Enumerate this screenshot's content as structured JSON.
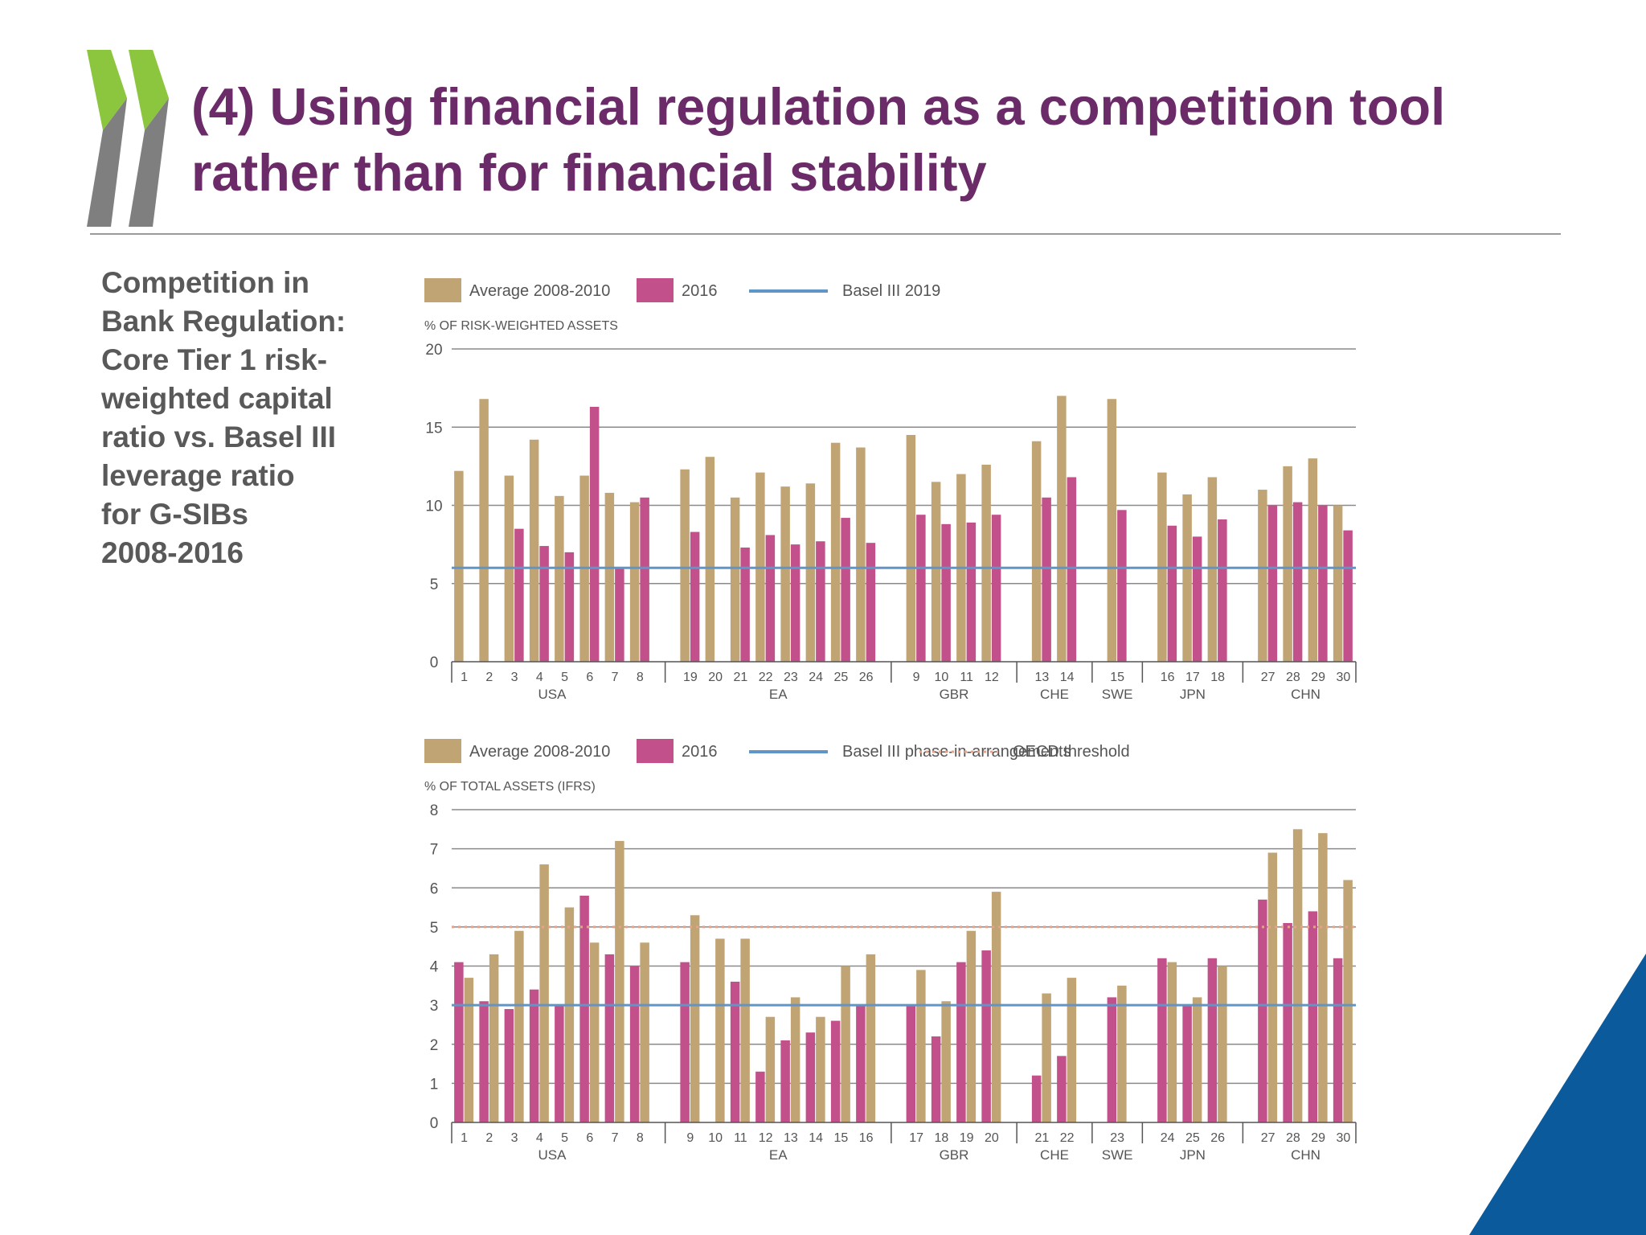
{
  "slide": {
    "title_lines": [
      "(4) Using financial regulation as a competition tool",
      "rather than for financial stability"
    ],
    "side_text_lines": [
      "Competition in",
      "Bank Regulation:",
      "Core Tier 1 risk-",
      "weighted capital",
      "ratio vs. Basel III",
      "leverage ratio",
      "for G-SIBs",
      "2008-2016"
    ],
    "colors": {
      "title": "#6b2a68",
      "side_text": "#595959",
      "logo_green": "#8cc63f",
      "logo_gray": "#7f7f7f",
      "corner_blue": "#0a5a9c"
    },
    "icons": [
      "chevrons-logo-icon"
    ]
  },
  "chart_data": [
    {
      "type": "bar",
      "legend": [
        "Average 2008-2010",
        "2016",
        "Basel III 2019"
      ],
      "ylabel": "% OF RISK-WEIGHTED ASSETS",
      "ylim": [
        0,
        20
      ],
      "yticks": [
        0,
        5,
        10,
        15,
        20
      ],
      "grid": true,
      "legend_position": "top-left",
      "colors": {
        "avg": "#c1a474",
        "y2016": "#c2508a",
        "line": "#5f96c7"
      },
      "reference_line": {
        "name": "Basel III 2019",
        "value": 6
      },
      "groups": [
        {
          "name": "USA",
          "banks": [
            {
              "id": "1",
              "avg": 12.2,
              "y2016": null
            },
            {
              "id": "2",
              "avg": 16.8,
              "y2016": null
            },
            {
              "id": "3",
              "avg": 11.9,
              "y2016": 8.5
            },
            {
              "id": "4",
              "avg": 14.2,
              "y2016": 7.4
            },
            {
              "id": "5",
              "avg": 10.6,
              "y2016": 7.0
            },
            {
              "id": "6",
              "avg": 11.9,
              "y2016": 16.3
            },
            {
              "id": "7",
              "avg": 10.8,
              "y2016": 6.0
            },
            {
              "id": "8",
              "avg": 10.2,
              "y2016": 10.5
            }
          ]
        },
        {
          "name": "EA",
          "banks": [
            {
              "id": "19",
              "avg": 12.3,
              "y2016": 8.3
            },
            {
              "id": "20",
              "avg": 13.1,
              "y2016": null
            },
            {
              "id": "21",
              "avg": 10.5,
              "y2016": 7.3
            },
            {
              "id": "22",
              "avg": 12.1,
              "y2016": 8.1
            },
            {
              "id": "23",
              "avg": 11.2,
              "y2016": 7.5
            },
            {
              "id": "24",
              "avg": 11.4,
              "y2016": 7.7
            },
            {
              "id": "25",
              "avg": 14.0,
              "y2016": 9.2
            },
            {
              "id": "26",
              "avg": 13.7,
              "y2016": 7.6
            }
          ]
        },
        {
          "name": "GBR",
          "banks": [
            {
              "id": "9",
              "avg": 14.5,
              "y2016": 9.4
            },
            {
              "id": "10",
              "avg": 11.5,
              "y2016": 8.8
            },
            {
              "id": "11",
              "avg": 12.0,
              "y2016": 8.9
            },
            {
              "id": "12",
              "avg": 12.6,
              "y2016": 9.4
            }
          ]
        },
        {
          "name": "CHE",
          "banks": [
            {
              "id": "13",
              "avg": 14.1,
              "y2016": 10.5
            },
            {
              "id": "14",
              "avg": 17.0,
              "y2016": 11.8
            }
          ]
        },
        {
          "name": "SWE",
          "banks": [
            {
              "id": "15",
              "avg": 16.8,
              "y2016": 9.7
            }
          ]
        },
        {
          "name": "JPN",
          "banks": [
            {
              "id": "16",
              "avg": 12.1,
              "y2016": 8.7
            },
            {
              "id": "17",
              "avg": 10.7,
              "y2016": 8.0
            },
            {
              "id": "18",
              "avg": 11.8,
              "y2016": 9.1
            }
          ]
        },
        {
          "name": "CHN",
          "banks": [
            {
              "id": "27",
              "avg": 11.0,
              "y2016": 10.0
            },
            {
              "id": "28",
              "avg": 12.5,
              "y2016": 10.2
            },
            {
              "id": "29",
              "avg": 13.0,
              "y2016": 10.0
            },
            {
              "id": "30",
              "avg": 10.0,
              "y2016": 8.4
            }
          ]
        }
      ]
    },
    {
      "type": "bar",
      "legend": [
        "Average 2008-2010",
        "2016",
        "Basel III phase-in-arrangements",
        "OECD threshold"
      ],
      "ylabel": "% OF TOTAL ASSETS (IFRS)",
      "ylim": [
        0,
        8
      ],
      "yticks": [
        0,
        1,
        2,
        3,
        4,
        5,
        6,
        7,
        8
      ],
      "grid": true,
      "legend_position": "top-left",
      "colors": {
        "avg": "#c1a474",
        "y2016": "#c2508a",
        "line": "#5f96c7",
        "threshold": "#e2a58c"
      },
      "reference_line": {
        "name": "Basel III phase-in-arrangements",
        "value": 3
      },
      "threshold_line": {
        "name": "OECD threshold",
        "value": 5
      },
      "groups": [
        {
          "name": "USA",
          "banks": [
            {
              "id": "1",
              "y2016": 4.1,
              "avg": 3.7
            },
            {
              "id": "2",
              "y2016": 3.1,
              "avg": 4.3
            },
            {
              "id": "3",
              "y2016": 2.9,
              "avg": 4.9
            },
            {
              "id": "4",
              "y2016": 3.4,
              "avg": 6.6
            },
            {
              "id": "5",
              "y2016": 3.0,
              "avg": 5.5
            },
            {
              "id": "6",
              "y2016": 5.8,
              "avg": 4.6
            },
            {
              "id": "7",
              "y2016": 4.3,
              "avg": 7.2
            },
            {
              "id": "8",
              "y2016": 4.0,
              "avg": 4.6
            }
          ]
        },
        {
          "name": "EA",
          "banks": [
            {
              "id": "9",
              "y2016": 4.1,
              "avg": 5.3
            },
            {
              "id": "10",
              "y2016": null,
              "avg": 4.7
            },
            {
              "id": "11",
              "y2016": 3.6,
              "avg": 4.7
            },
            {
              "id": "12",
              "y2016": 1.3,
              "avg": 2.7
            },
            {
              "id": "13",
              "y2016": 2.1,
              "avg": 3.2
            },
            {
              "id": "14",
              "y2016": 2.3,
              "avg": 2.7
            },
            {
              "id": "15",
              "y2016": 2.6,
              "avg": 4.0
            },
            {
              "id": "16",
              "y2016": 3.0,
              "avg": 4.3
            }
          ]
        },
        {
          "name": "GBR",
          "banks": [
            {
              "id": "17",
              "y2016": 3.0,
              "avg": 3.9
            },
            {
              "id": "18",
              "y2016": 2.2,
              "avg": 3.1
            },
            {
              "id": "19",
              "y2016": 4.1,
              "avg": 4.9
            },
            {
              "id": "20",
              "y2016": 4.4,
              "avg": 5.9
            }
          ]
        },
        {
          "name": "CHE",
          "banks": [
            {
              "id": "21",
              "y2016": 1.2,
              "avg": 3.3
            },
            {
              "id": "22",
              "y2016": 1.7,
              "avg": 3.7
            }
          ]
        },
        {
          "name": "SWE",
          "banks": [
            {
              "id": "23",
              "y2016": 3.2,
              "avg": 3.5
            }
          ]
        },
        {
          "name": "JPN",
          "banks": [
            {
              "id": "24",
              "y2016": 4.2,
              "avg": 4.1
            },
            {
              "id": "25",
              "y2016": 3.0,
              "avg": 3.2
            },
            {
              "id": "26",
              "y2016": 4.2,
              "avg": 4.0
            }
          ]
        },
        {
          "name": "CHN",
          "banks": [
            {
              "id": "27",
              "y2016": 5.7,
              "avg": 6.9
            },
            {
              "id": "28",
              "y2016": 5.1,
              "avg": 7.5
            },
            {
              "id": "29",
              "y2016": 5.4,
              "avg": 7.4
            },
            {
              "id": "30",
              "y2016": 4.2,
              "avg": 6.2
            }
          ]
        }
      ]
    }
  ]
}
